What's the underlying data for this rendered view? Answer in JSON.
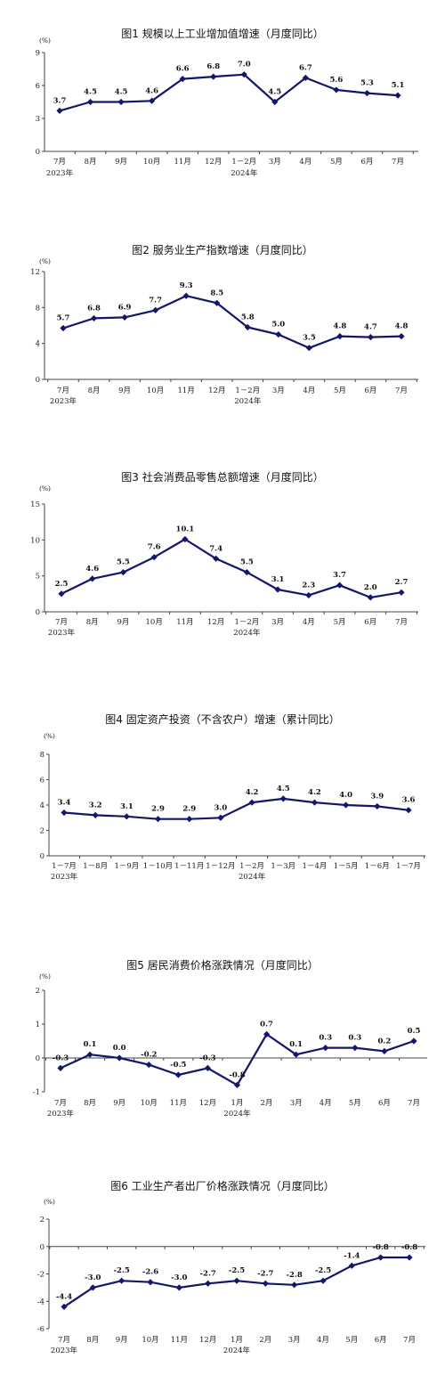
{
  "colors": {
    "series": "#14166b",
    "axis": "#444444"
  },
  "chart_data": [
    {
      "type": "line",
      "title": "图1   规模以上工业增加值增速（月度同比）",
      "unit": "(%)",
      "categories": [
        "7月",
        "8月",
        "9月",
        "10月",
        "11月",
        "12月",
        "1－2月",
        "3月",
        "4月",
        "5月",
        "6月",
        "7月"
      ],
      "year_labels": [
        {
          "index": 0,
          "text": "2023年"
        },
        {
          "index": 6,
          "text": "2024年"
        }
      ],
      "values": [
        3.7,
        4.5,
        4.5,
        4.6,
        6.6,
        6.8,
        7.0,
        4.5,
        6.7,
        5.6,
        5.3,
        5.1
      ],
      "value_labels": [
        "3.7",
        "4.5",
        "4.5",
        "4.6",
        "6.6",
        "6.8",
        "7.0",
        "4.5",
        "6.7",
        "5.6",
        "5.3",
        "5.1"
      ],
      "ylim": [
        0,
        9
      ],
      "yticks": [
        0,
        3,
        6,
        9
      ],
      "ytick_labels": [
        "0",
        "3",
        "6",
        "9"
      ]
    },
    {
      "type": "line",
      "title": "图2   服务业生产指数增速（月度同比）",
      "unit": "(%)",
      "categories": [
        "7月",
        "8月",
        "9月",
        "10月",
        "11月",
        "12月",
        "1－2月",
        "3月",
        "4月",
        "5月",
        "6月",
        "7月"
      ],
      "year_labels": [
        {
          "index": 0,
          "text": "2023年"
        },
        {
          "index": 6,
          "text": "2024年"
        }
      ],
      "values": [
        5.7,
        6.8,
        6.9,
        7.7,
        9.3,
        8.5,
        5.8,
        5.0,
        3.5,
        4.8,
        4.7,
        4.8
      ],
      "value_labels": [
        "5.7",
        "6.8",
        "6.9",
        "7.7",
        "9.3",
        "8.5",
        "5.8",
        "5.0",
        "3.5",
        "4.8",
        "4.7",
        "4.8"
      ],
      "ylim": [
        0,
        12
      ],
      "yticks": [
        0,
        4,
        8,
        12
      ],
      "ytick_labels": [
        "0",
        "4",
        "8",
        "12"
      ]
    },
    {
      "type": "line",
      "title": "图3   社会消费品零售总额增速（月度同比）",
      "unit": "(%)",
      "categories": [
        "7月",
        "8月",
        "9月",
        "10月",
        "11月",
        "12月",
        "1－2月",
        "3月",
        "4月",
        "5月",
        "6月",
        "7月"
      ],
      "year_labels": [
        {
          "index": 0,
          "text": "2023年"
        },
        {
          "index": 6,
          "text": "2024年"
        }
      ],
      "values": [
        2.5,
        4.6,
        5.5,
        7.6,
        10.1,
        7.4,
        5.5,
        3.1,
        2.3,
        3.7,
        2.0,
        2.7
      ],
      "value_labels": [
        "2.5",
        "4.6",
        "5.5",
        "7.6",
        "10.1",
        "7.4",
        "5.5",
        "3.1",
        "2.3",
        "3.7",
        "2.0",
        "2.7"
      ],
      "ylim": [
        0,
        15
      ],
      "yticks": [
        0,
        5,
        10,
        15
      ],
      "ytick_labels": [
        "0",
        "5",
        "10",
        "15"
      ]
    },
    {
      "type": "line",
      "title": "图4   固定资产投资（不含农户）增速（累计同比）",
      "unit": "(%)",
      "categories": [
        "1－7月",
        "1－8月",
        "1－9月",
        "1－10月",
        "1－11月",
        "1－12月",
        "1－2月",
        "1－3月",
        "1－4月",
        "1－5月",
        "1－6月",
        "1－7月"
      ],
      "year_labels": [
        {
          "index": 0,
          "text": "2023年"
        },
        {
          "index": 6,
          "text": "2024年"
        }
      ],
      "values": [
        3.4,
        3.2,
        3.1,
        2.9,
        2.9,
        3.0,
        4.2,
        4.5,
        4.2,
        4.0,
        3.9,
        3.6
      ],
      "value_labels": [
        "3.4",
        "3.2",
        "3.1",
        "2.9",
        "2.9",
        "3.0",
        "4.2",
        "4.5",
        "4.2",
        "4.0",
        "3.9",
        "3.6"
      ],
      "ylim": [
        0,
        8
      ],
      "yticks": [
        0,
        2,
        4,
        6,
        8
      ],
      "ytick_labels": [
        "0",
        "2",
        "4",
        "6",
        "8"
      ]
    },
    {
      "type": "line",
      "title": "图5   居民消费价格涨跌情况（月度同比）",
      "unit": "(%)",
      "categories": [
        "7月",
        "8月",
        "9月",
        "10月",
        "11月",
        "12月",
        "1月",
        "2月",
        "3月",
        "4月",
        "5月",
        "6月",
        "7月"
      ],
      "year_labels": [
        {
          "index": 0,
          "text": "2023年"
        },
        {
          "index": 6,
          "text": "2024年"
        }
      ],
      "values": [
        -0.3,
        0.1,
        0.0,
        -0.2,
        -0.5,
        -0.3,
        -0.8,
        0.7,
        0.1,
        0.3,
        0.3,
        0.2,
        0.5
      ],
      "value_labels": [
        "-0.3",
        "0.1",
        "0.0",
        "-0.2",
        "-0.5",
        "-0.3",
        "-0.8",
        "0.7",
        "0.1",
        "0.3",
        "0.3",
        "0.2",
        "0.5"
      ],
      "ylim": [
        -1,
        2
      ],
      "yticks": [
        -1,
        0,
        1,
        2
      ],
      "ytick_labels": [
        "-1",
        "0",
        "1",
        "2"
      ]
    },
    {
      "type": "line",
      "title": "图6   工业生产者出厂价格涨跌情况（月度同比）",
      "unit": "(%)",
      "categories": [
        "7月",
        "8月",
        "9月",
        "10月",
        "11月",
        "12月",
        "1月",
        "2月",
        "3月",
        "4月",
        "5月",
        "6月",
        "7月"
      ],
      "year_labels": [
        {
          "index": 0,
          "text": "2023年"
        },
        {
          "index": 6,
          "text": "2024年"
        }
      ],
      "values": [
        -4.4,
        -3.0,
        -2.5,
        -2.6,
        -3.0,
        -2.7,
        -2.5,
        -2.7,
        -2.8,
        -2.5,
        -1.4,
        -0.8,
        -0.8
      ],
      "value_labels": [
        "-4.4",
        "-3.0",
        "-2.5",
        "-2.6",
        "-3.0",
        "-2.7",
        "-2.5",
        "-2.7",
        "-2.8",
        "-2.5",
        "-1.4",
        "-0.8",
        "-0.8"
      ],
      "ylim": [
        -6,
        2
      ],
      "yticks": [
        -6,
        -4,
        -2,
        0,
        2
      ],
      "ytick_labels": [
        "-6",
        "-4",
        "-2",
        "0",
        "2"
      ]
    }
  ]
}
